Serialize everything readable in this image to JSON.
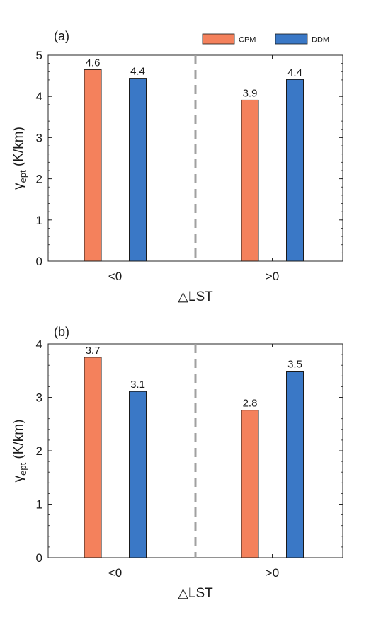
{
  "colors": {
    "CPM": "#f4815c",
    "DDM": "#3a78c6",
    "divider": "#a0a0a0"
  },
  "legend": [
    {
      "name": "CPM",
      "color": "#f4815c"
    },
    {
      "name": "DDM",
      "color": "#3a78c6"
    }
  ],
  "chart_data": [
    {
      "panel": "(a)",
      "type": "bar",
      "categories": [
        "<0",
        ">0"
      ],
      "series": [
        {
          "name": "CPM",
          "values": [
            4.65,
            3.91
          ],
          "labels": [
            "4.6",
            "3.9"
          ]
        },
        {
          "name": "DDM",
          "values": [
            4.44,
            4.41
          ],
          "labels": [
            "4.4",
            "4.4"
          ]
        }
      ],
      "xlabel": "△LST",
      "ylabel": {
        "symbol": "γ",
        "subscript": "ept",
        "unit": "(K/km)"
      },
      "ylim": [
        0,
        5
      ],
      "yticks": [
        0,
        1,
        2,
        3,
        4,
        5
      ],
      "grid": false,
      "legend_position": "top-right",
      "divider_dashed": true
    },
    {
      "panel": "(b)",
      "type": "bar",
      "categories": [
        "<0",
        ">0"
      ],
      "series": [
        {
          "name": "CPM",
          "values": [
            3.75,
            2.76
          ],
          "labels": [
            "3.7",
            "2.8"
          ]
        },
        {
          "name": "DDM",
          "values": [
            3.11,
            3.49
          ],
          "labels": [
            "3.1",
            "3.5"
          ]
        }
      ],
      "xlabel": "△LST",
      "ylabel": {
        "symbol": "γ",
        "subscript": "ept",
        "unit": "(K/km)"
      },
      "ylim": [
        0,
        4
      ],
      "yticks": [
        0,
        1,
        2,
        3,
        4
      ],
      "grid": false,
      "legend_position": "none",
      "divider_dashed": true
    }
  ]
}
